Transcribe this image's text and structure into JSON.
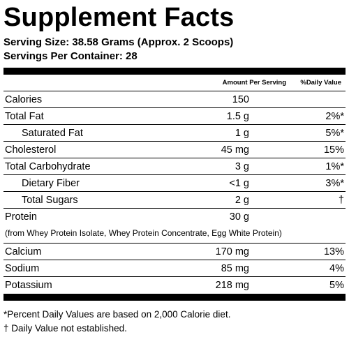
{
  "title": "Supplement Facts",
  "serving_size": "Serving Size: 38.58 Grams (Approx. 2 Scoops)",
  "servings_per_container": "Servings Per Container: 28",
  "header": {
    "amount_label": "Amount Per Serving",
    "daily_value_label": "%Daily Value"
  },
  "rows": [
    {
      "name": "Calories",
      "amount": "150",
      "dv": ""
    },
    {
      "name": "Total Fat",
      "amount": "1.5 g",
      "dv": "2%*"
    },
    {
      "name": "Saturated Fat",
      "amount": "1 g",
      "dv": "5%*"
    },
    {
      "name": "Cholesterol",
      "amount": "45 mg",
      "dv": "15%"
    },
    {
      "name": "Total Carbohydrate",
      "amount": "3 g",
      "dv": "1%*"
    },
    {
      "name": "Dietary Fiber",
      "amount": "<1 g",
      "dv": "3%*"
    },
    {
      "name": "Total Sugars",
      "amount": "2 g",
      "dv": "†"
    },
    {
      "name": "Protein",
      "amount": "30 g",
      "dv": ""
    }
  ],
  "protein_note": "(from Whey Protein Isolate, Whey Protein Concentrate, Egg White Protein)",
  "minerals": [
    {
      "name": "Calcium",
      "amount": "170 mg",
      "dv": "13%"
    },
    {
      "name": "Sodium",
      "amount": "85 mg",
      "dv": "4%"
    },
    {
      "name": "Potassium",
      "amount": "218 mg",
      "dv": "5%"
    }
  ],
  "footnotes": {
    "daily_values": "*Percent Daily Values are based on 2,000 Calorie diet.",
    "not_established": "† Daily Value not established."
  }
}
